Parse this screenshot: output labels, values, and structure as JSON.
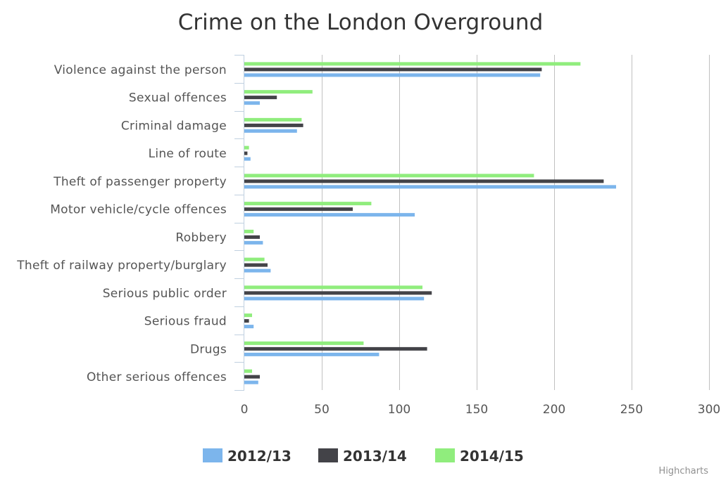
{
  "chart_data": {
    "type": "bar",
    "orientation": "horizontal",
    "title": "Crime on the London Overground",
    "categories": [
      "Violence against the person",
      "Sexual offences",
      "Criminal damage",
      "Line of route",
      "Theft of passenger property",
      "Motor vehicle/cycle offences",
      "Robbery",
      "Theft of railway property/burglary",
      "Serious public order",
      "Serious fraud",
      "Drugs",
      "Other serious offences"
    ],
    "series": [
      {
        "name": "2012/13",
        "color": "#7cb5ec",
        "values": [
          191,
          10,
          34,
          4,
          240,
          110,
          12,
          17,
          116,
          6,
          87,
          9
        ]
      },
      {
        "name": "2013/14",
        "color": "#434348",
        "values": [
          192,
          21,
          38,
          2,
          232,
          70,
          10,
          15,
          121,
          3,
          118,
          10
        ]
      },
      {
        "name": "2014/15",
        "color": "#90ed7d",
        "values": [
          217,
          44,
          37,
          3,
          187,
          82,
          6,
          13,
          115,
          5,
          77,
          5
        ]
      }
    ],
    "xlim": [
      0,
      300
    ],
    "ticks": [
      0,
      50,
      100,
      150,
      200,
      250,
      300
    ],
    "grid": true,
    "legend": "bottom-center",
    "credits": "Highcharts"
  }
}
